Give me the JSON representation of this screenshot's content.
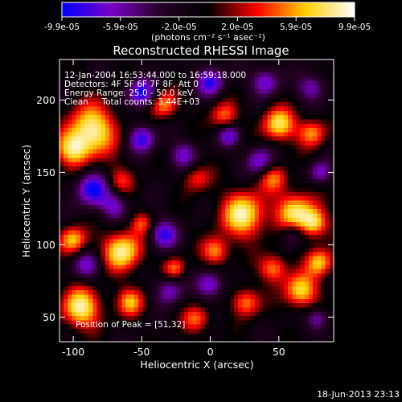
{
  "colorbar": {
    "tick_labels": [
      "-9.9e-05",
      "-5.9e-05",
      "-2.0e-05",
      "2.0e-05",
      "5.9e-05",
      "9.9e-05"
    ],
    "units_label": "(photons cm⁻² s⁻¹ asec⁻²)",
    "range": [
      -9.9e-05,
      9.9e-05
    ],
    "colormap": [
      "#0000ff",
      "#7a00c8",
      "#2a002a",
      "#000000",
      "#ff0000",
      "#ffd000",
      "#ffffff"
    ]
  },
  "plot": {
    "title": "Reconstructed RHESSI Image",
    "annotation_lines": [
      "12-Jan-2004 16:53:44.000 to 16:59:18.000",
      "Detectors: 4F 5F 6F 7F 8F, Att 0",
      "Energy Range: 25.0 - 50.0 keV",
      "Clean     Total counts: 3.44E+03"
    ],
    "peak_label": "Position of Peak = [51,32]",
    "xlabel": "Heliocentric X (arcsec)",
    "ylabel": "Heliocentric Y (arcsec)",
    "x_ticks": [
      -100,
      -50,
      0,
      50
    ],
    "y_ticks": [
      50,
      100,
      150,
      200
    ],
    "x_range": [
      -110,
      90
    ],
    "y_range": [
      33,
      228
    ]
  },
  "footer": {
    "timestamp": "18-Jun-2013 23:13"
  }
}
